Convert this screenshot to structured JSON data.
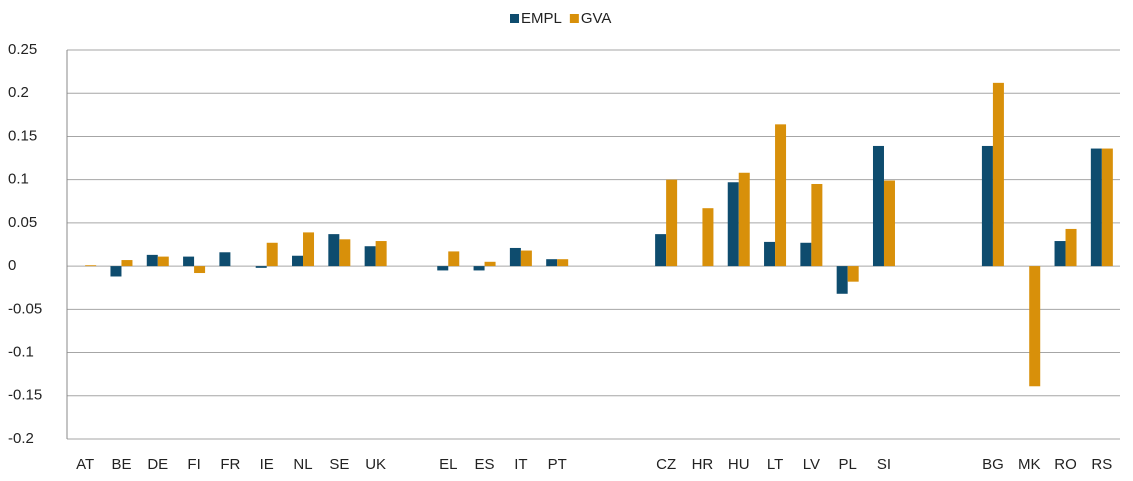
{
  "chart_data": {
    "type": "bar",
    "categories": [
      "AT",
      "BE",
      "DE",
      "FI",
      "FR",
      "IE",
      "NL",
      "SE",
      "UK",
      null,
      "EL",
      "ES",
      "IT",
      "PT",
      null,
      null,
      "CZ",
      "HR",
      "HU",
      "LT",
      "LV",
      "PL",
      "SI",
      null,
      null,
      "BG",
      "MK",
      "RO",
      "RS"
    ],
    "series": [
      {
        "name": "EMPL",
        "color": "#0e4c6e",
        "values": [
          0,
          -0.012,
          0.013,
          0.011,
          0.016,
          -0.002,
          0.012,
          0.037,
          0.023,
          null,
          -0.005,
          -0.005,
          0.021,
          0.008,
          null,
          null,
          0.037,
          0,
          0.097,
          0.028,
          0.027,
          -0.032,
          0.139,
          null,
          null,
          0.139,
          0,
          0.029,
          0.136
        ]
      },
      {
        "name": "GVA",
        "color": "#d8900a",
        "values": [
          0.001,
          0.007,
          0.011,
          -0.008,
          0,
          0.027,
          0.039,
          0.031,
          0.029,
          null,
          0.017,
          0.005,
          0.018,
          0.008,
          null,
          null,
          0.1,
          0.067,
          0.108,
          0.164,
          0.095,
          -0.018,
          0.099,
          null,
          null,
          0.212,
          -0.139,
          0.043,
          0.136
        ]
      }
    ],
    "ylim": [
      -0.2,
      0.25
    ],
    "yticks": [
      -0.2,
      -0.15,
      -0.1,
      -0.05,
      0,
      0.05,
      0.1,
      0.15,
      0.2,
      0.25
    ],
    "grid": true,
    "legend": "top"
  }
}
